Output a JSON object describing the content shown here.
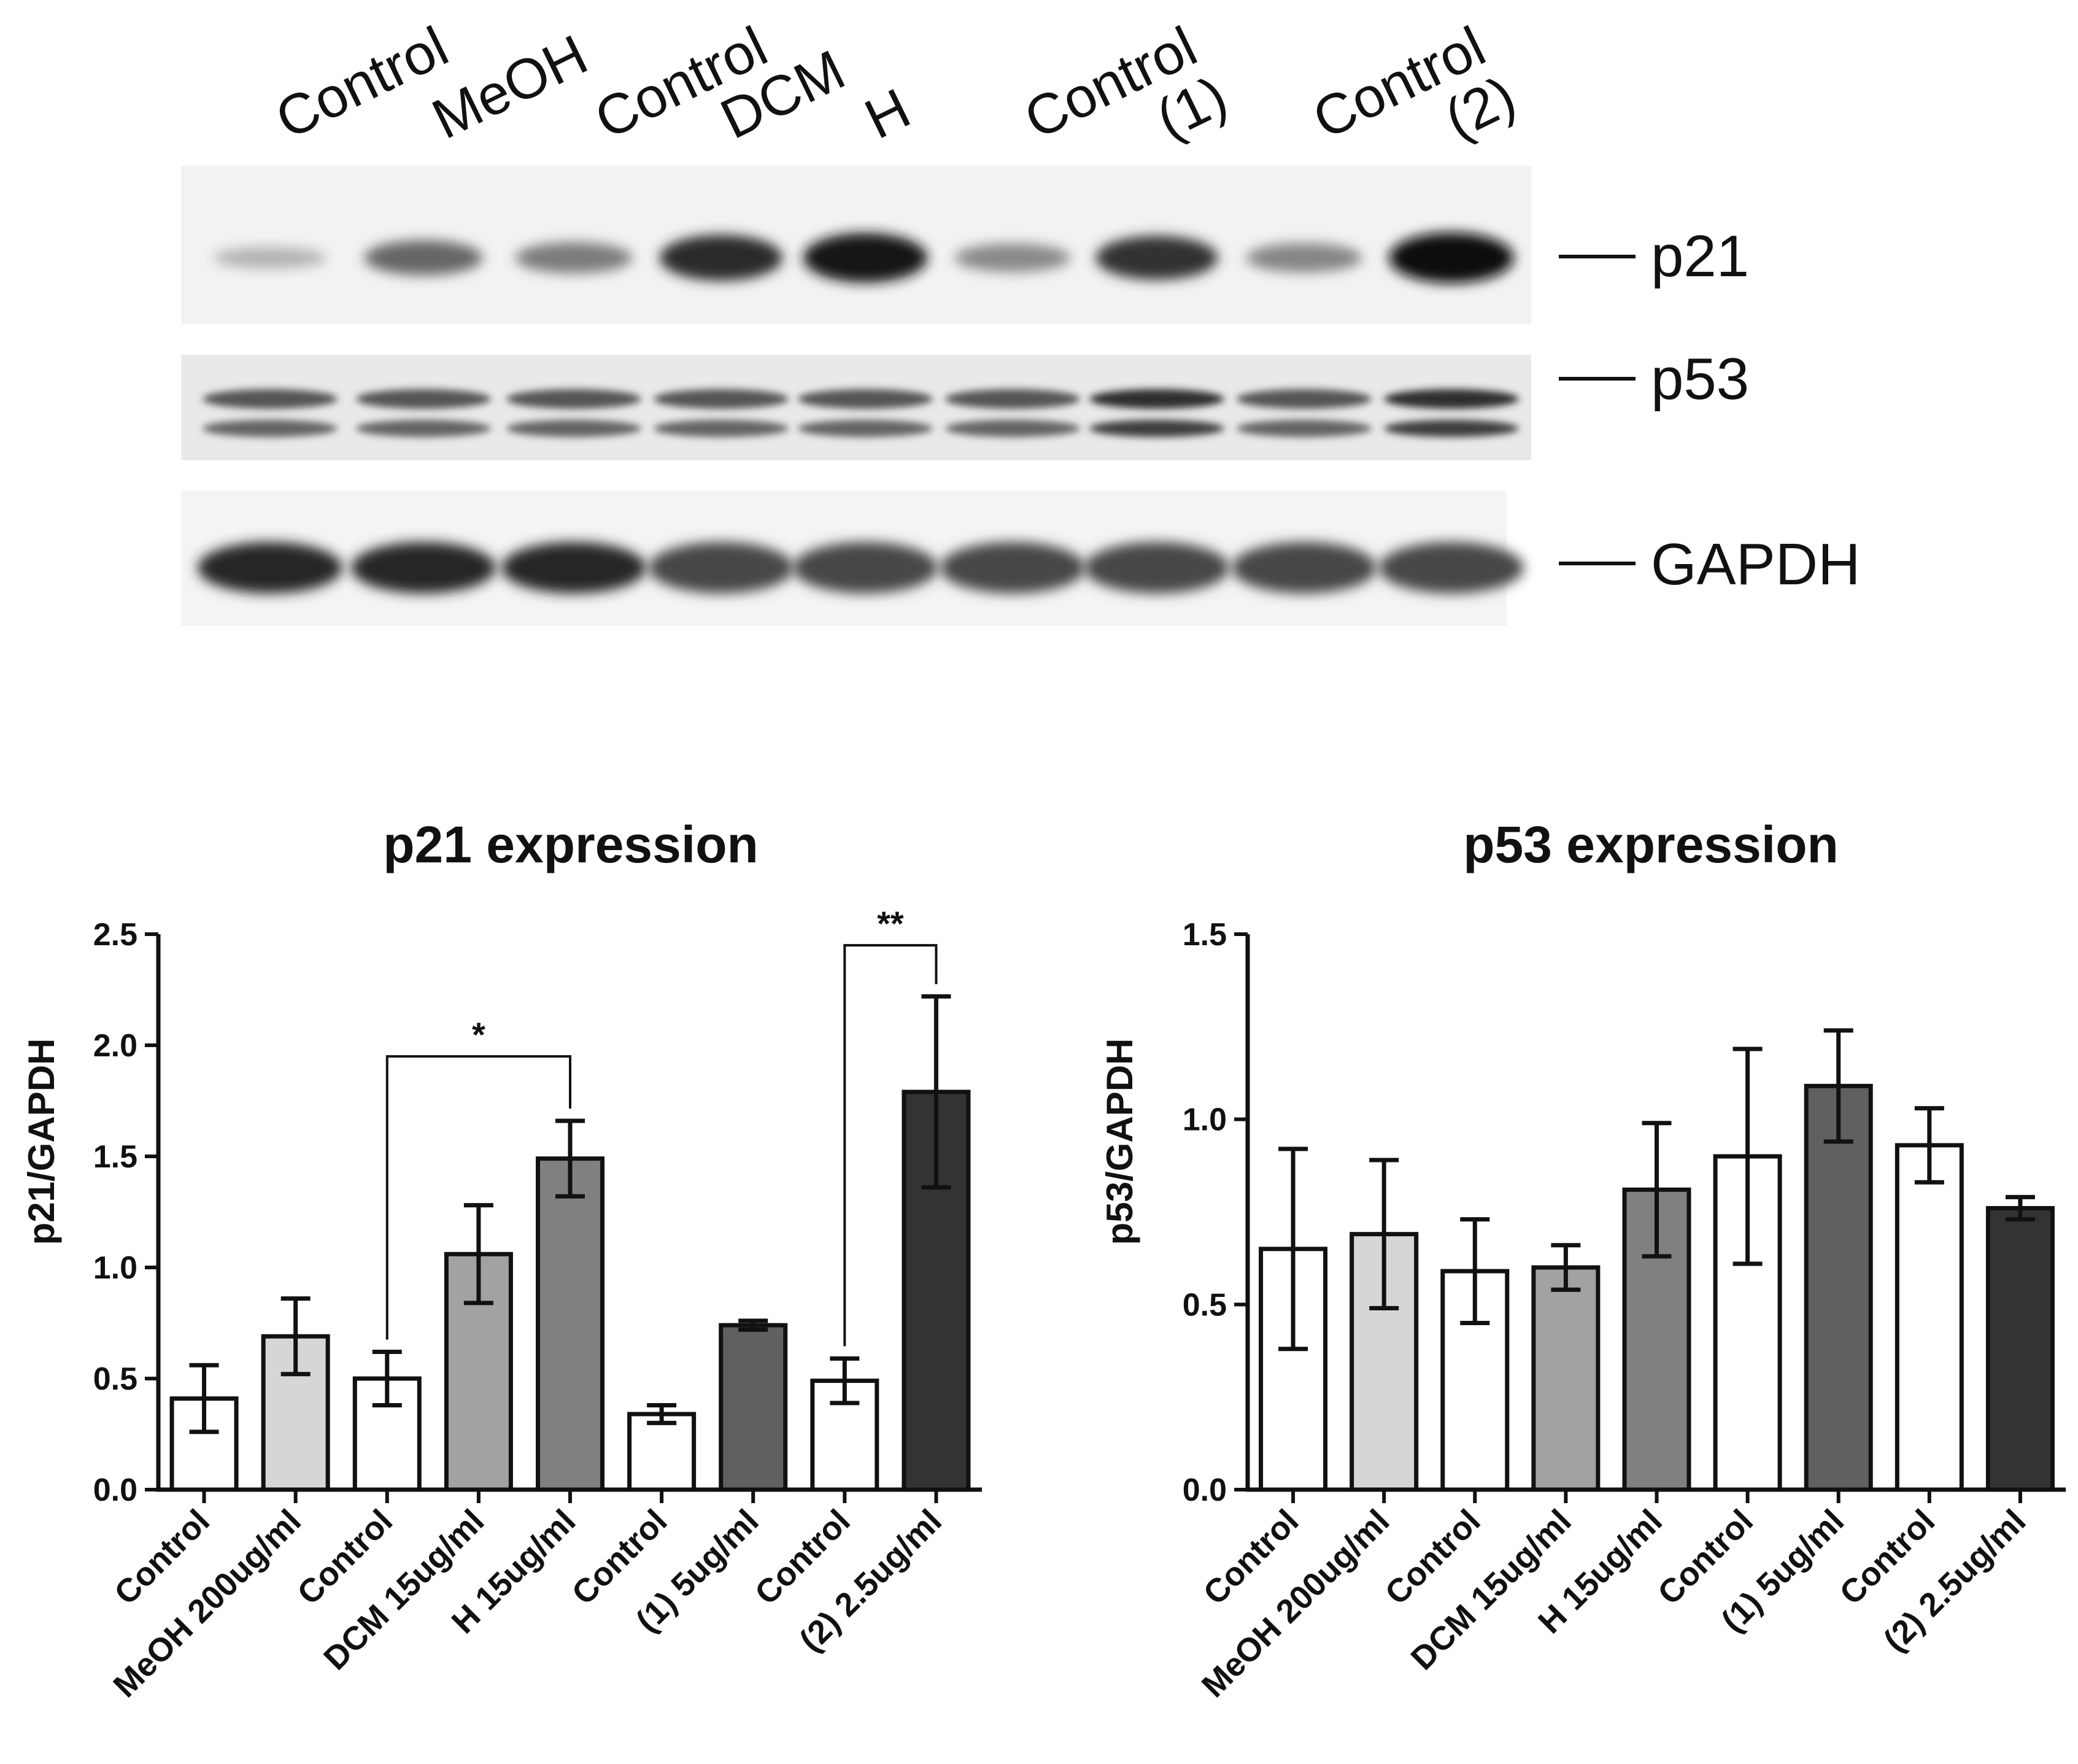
{
  "blot": {
    "lane_labels": [
      "Control",
      "MeOH",
      "Control",
      "DCM",
      "H",
      "Control",
      "(1)",
      "Control",
      "(2)"
    ],
    "p21_intensity": [
      0.18,
      0.55,
      0.45,
      0.85,
      0.95,
      0.38,
      0.8,
      0.4,
      0.98
    ],
    "rows": [
      {
        "label": "p21"
      },
      {
        "label": "p53"
      },
      {
        "label": "GAPDH"
      }
    ]
  },
  "chart_data": [
    {
      "type": "bar",
      "title": "p21 expression",
      "ylabel": "p21/GAPDH",
      "xlabel": "",
      "ylim": [
        0,
        2.5
      ],
      "yticks": [
        "0.0",
        "0.5",
        "1.0",
        "1.5",
        "2.0",
        "2.5"
      ],
      "ytick_values": [
        0,
        0.5,
        1.0,
        1.5,
        2.0,
        2.5
      ],
      "categories": [
        "Control",
        "MeOH 200ug/ml",
        "Control",
        "DCM 15ug/ml",
        "H 15ug/ml",
        "Control",
        "(1) 5ug/ml",
        "Control",
        "(2) 2.5ug/ml"
      ],
      "values": [
        0.41,
        0.69,
        0.5,
        1.06,
        1.49,
        0.34,
        0.74,
        0.49,
        1.79
      ],
      "errors": [
        0.15,
        0.17,
        0.12,
        0.22,
        0.17,
        0.04,
        0.02,
        0.1,
        0.43
      ],
      "colors": [
        "#ffffff",
        "#d6d6d6",
        "#ffffff",
        "#a2a2a2",
        "#808080",
        "#ffffff",
        "#606060",
        "#ffffff",
        "#333333"
      ],
      "significance": [
        {
          "from": 2,
          "to": 4,
          "y": 1.95,
          "label": "*"
        },
        {
          "from": 7,
          "to": 8,
          "y": 2.45,
          "label": "**"
        }
      ],
      "grid": false
    },
    {
      "type": "bar",
      "title": "p53 expression",
      "ylabel": "p53/GAPDH",
      "xlabel": "",
      "ylim": [
        0,
        1.5
      ],
      "yticks": [
        "0.0",
        "0.5",
        "1.0",
        "1.5"
      ],
      "ytick_values": [
        0,
        0.5,
        1.0,
        1.5
      ],
      "categories": [
        "Control",
        "MeOH 200ug/ml",
        "Control",
        "DCM 15ug/ml",
        "H 15ug/ml",
        "Control",
        "(1) 5ug/ml",
        "Control",
        "(2) 2.5ug/ml"
      ],
      "values": [
        0.65,
        0.69,
        0.59,
        0.6,
        0.81,
        0.9,
        1.09,
        0.93,
        0.76
      ],
      "errors": [
        0.27,
        0.2,
        0.14,
        0.06,
        0.18,
        0.29,
        0.15,
        0.1,
        0.03
      ],
      "colors": [
        "#ffffff",
        "#d6d6d6",
        "#ffffff",
        "#a2a2a2",
        "#808080",
        "#ffffff",
        "#606060",
        "#ffffff",
        "#333333"
      ],
      "significance": [],
      "grid": false
    }
  ]
}
